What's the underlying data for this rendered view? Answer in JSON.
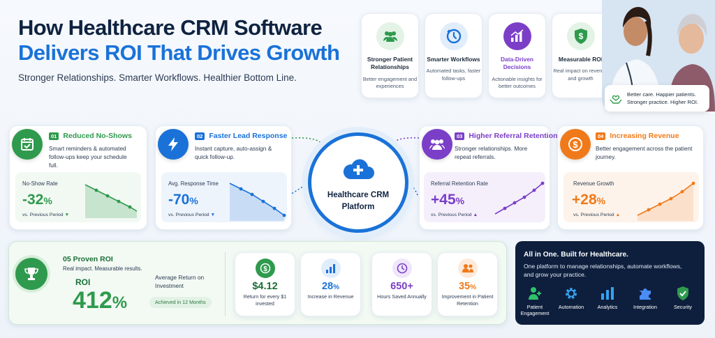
{
  "header": {
    "title_line1": "How Healthcare CRM Software",
    "title_line2": "Delivers ROI That Drives Growth",
    "subtitle": "Stronger Relationships. Smarter Workflows. Healthier Bottom Line."
  },
  "features": [
    {
      "title": "Stronger Patient Relationships",
      "desc": "Better engagement and experiences",
      "icon": "patients-icon",
      "color": "#2f9a4d"
    },
    {
      "title": "Smarter Workflows",
      "desc": "Automated tasks, faster follow-ups",
      "icon": "clock-icon",
      "color": "#1a72d8"
    },
    {
      "title": "Data-Driven Decisions",
      "desc": "Actionable insights for better outcomes",
      "icon": "chart-icon",
      "color": "#7b3fc7"
    },
    {
      "title": "Measurable ROI",
      "desc": "Real impact on revenue and growth",
      "icon": "dollar-shield-icon",
      "color": "#2f9a4d"
    }
  ],
  "quote": {
    "line1": "Better care. Happier patients.",
    "line2": "Stronger practice. Higher ROI."
  },
  "hub": {
    "line1": "Healthcare CRM",
    "line2": "Platform"
  },
  "metrics": [
    {
      "num": "01",
      "title": "Reduced No-Shows",
      "desc": "Smart reminders & automated follow-ups keep your schedule full.",
      "label": "No-Show Rate",
      "value": "-32",
      "unit": "%",
      "prev": "vs. Previous Period",
      "trend": "down",
      "color": "#2f9a4d"
    },
    {
      "num": "02",
      "title": "Faster Lead Response",
      "desc": "Instant capture, auto-assign & quick follow-up.",
      "label": "Avg. Response Time",
      "value": "-70",
      "unit": "%",
      "prev": "vs. Previous Period",
      "trend": "down",
      "color": "#1a72d8"
    },
    {
      "num": "03",
      "title": "Higher Referral Retention",
      "desc": "Stronger relationships. More repeat referrals.",
      "label": "Referral Retention Rate",
      "value": "+45",
      "unit": "%",
      "prev": "vs. Previous Period",
      "trend": "up",
      "color": "#7b3fc7"
    },
    {
      "num": "04",
      "title": "Increasing Revenue",
      "desc": "Better engagement across the patient journey.",
      "label": "Revenue Growth",
      "value": "+28",
      "unit": "%",
      "prev": "vs. Previous Period",
      "trend": "up",
      "color": "#f07a1a"
    }
  ],
  "roi": {
    "title": "05 Proven ROI",
    "subtitle": "Real impact. Measurable results.",
    "label": "ROI",
    "value": "412",
    "unit": "%",
    "avg_label": "Average Return on Investment",
    "badge": "Achieved in 12 Months"
  },
  "stats": [
    {
      "value": "$4.12",
      "unit": "",
      "desc": "Return for every $1 invested",
      "icon": "dollar-icon",
      "color": "#2f9a4d"
    },
    {
      "value": "28",
      "unit": "%",
      "desc": "Increase in Revenue",
      "icon": "bar-chart-icon",
      "color": "#1a72d8"
    },
    {
      "value": "650+",
      "unit": "",
      "desc": "Hours Saved Annually",
      "icon": "clock-icon",
      "color": "#7b3fc7"
    },
    {
      "value": "35",
      "unit": "%",
      "desc": "Improvement in Patient Retention",
      "icon": "people-icon",
      "color": "#f07a1a"
    }
  ],
  "platform": {
    "title": "All in One. Built for Healthcare.",
    "desc": "One platform to manage relationships, automate workflows, and grow your practice.",
    "items": [
      {
        "label": "Patient Engagement",
        "icon": "patient-icon"
      },
      {
        "label": "Automation",
        "icon": "gear-icon"
      },
      {
        "label": "Analytics",
        "icon": "analytics-icon"
      },
      {
        "label": "Integration",
        "icon": "puzzle-icon"
      },
      {
        "label": "Security",
        "icon": "shield-check-icon"
      }
    ]
  }
}
